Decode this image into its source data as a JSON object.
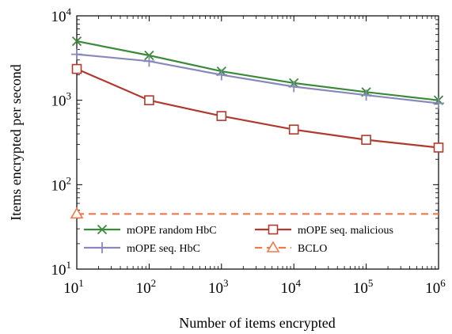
{
  "chart_data": {
    "type": "line",
    "title": "",
    "xlabel": "Number of items encrypted",
    "ylabel": "Items encrypted per second",
    "x": [
      10,
      100,
      1000,
      10000,
      100000,
      1000000
    ],
    "xscale": "log",
    "yscale": "log",
    "xlim": [
      10,
      1000000
    ],
    "ylim": [
      10,
      10000
    ],
    "x_ticks": [
      {
        "base": "10",
        "exp": "1"
      },
      {
        "base": "10",
        "exp": "2"
      },
      {
        "base": "10",
        "exp": "3"
      },
      {
        "base": "10",
        "exp": "4"
      },
      {
        "base": "10",
        "exp": "5"
      },
      {
        "base": "10",
        "exp": "6"
      }
    ],
    "y_ticks": [
      {
        "base": "10",
        "exp": "1"
      },
      {
        "base": "10",
        "exp": "2"
      },
      {
        "base": "10",
        "exp": "3"
      },
      {
        "base": "10",
        "exp": "4"
      }
    ],
    "grid": false,
    "legend_position": "lower-left",
    "series": [
      {
        "name": "mOPE random HbC",
        "marker": "x",
        "line": "solid",
        "color": "#3a8a3a",
        "values": [
          5000,
          3400,
          2200,
          1600,
          1250,
          1000
        ]
      },
      {
        "name": "mOPE seq. HbC",
        "marker": "plus",
        "line": "solid",
        "color": "#8888bb",
        "values": [
          3500,
          2900,
          2000,
          1450,
          1150,
          920
        ]
      },
      {
        "name": "mOPE seq. malicious",
        "marker": "square",
        "line": "solid",
        "color": "#b03a2e",
        "values": [
          2350,
          1000,
          650,
          450,
          340,
          275
        ]
      },
      {
        "name": "BCLO",
        "marker": "triangle",
        "line": "dashed",
        "color": "#f07848",
        "values": [
          45,
          45,
          45,
          45,
          45,
          45
        ],
        "marker_x": [
          10
        ]
      }
    ]
  }
}
